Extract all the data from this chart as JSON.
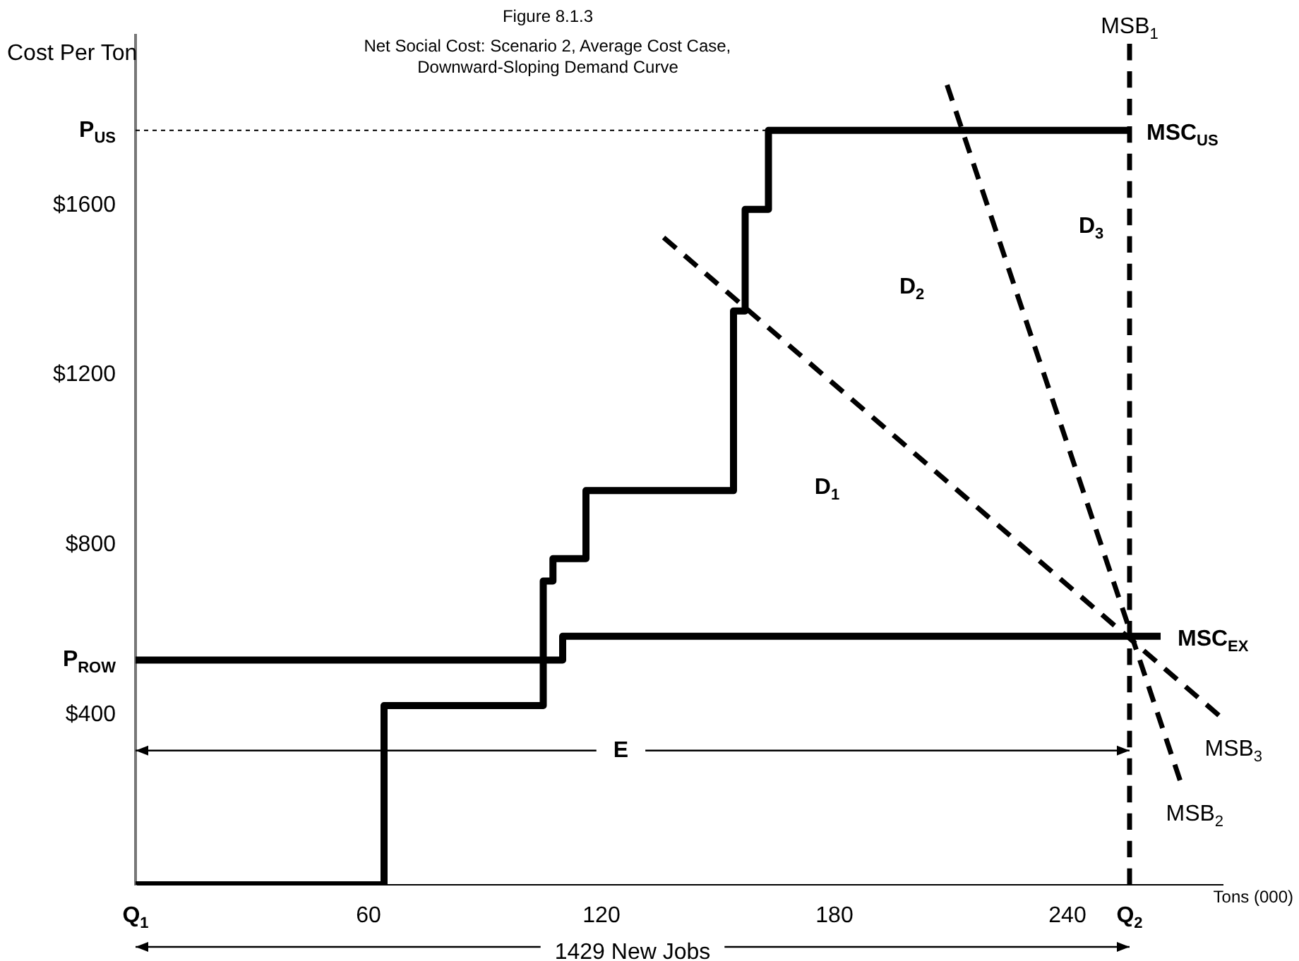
{
  "chart_data": {
    "type": "line",
    "title": "Figure 8.1.3",
    "subtitle": "Net Social Cost: Scenario 2, Average Cost Case,\nDownward-Sloping Demand Curve",
    "ylabel": "Cost Per Ton",
    "xlabel": "Tons (000)",
    "xlim": [
      0,
      280
    ],
    "ylim": [
      0,
      2000
    ],
    "xticks": [
      60,
      120,
      180,
      240
    ],
    "yticks": [
      {
        "value": 400,
        "label": "$400"
      },
      {
        "value": 529,
        "label": "P$_{ROW}$"
      },
      {
        "value": 800,
        "label": "$800"
      },
      {
        "value": 1200,
        "label": "$1200"
      },
      {
        "value": 1600,
        "label": "$1600"
      },
      {
        "value": 1776,
        "label": "P$_{US}$"
      }
    ],
    "grid": false,
    "legend": false,
    "marker": "none",
    "series": [
      {
        "type": "step",
        "name": "MSC$_{US}$",
        "color": "#000000",
        "x": [
          0,
          64,
          105,
          107.5,
          116,
          154,
          157,
          163,
          256
        ],
        "values": [
          0,
          422,
          715,
          768,
          928,
          1351,
          1590,
          1776,
          1776
        ]
      },
      {
        "type": "step",
        "name": "MSC$_{EX}$",
        "color": "#000000",
        "x": [
          0,
          110,
          264
        ],
        "values": [
          529,
          585,
          585
        ]
      },
      {
        "type": "line",
        "color": "#000000",
        "line_style": "dotted",
        "x": [
          0,
          163
        ],
        "values": [
          1776,
          1776
        ]
      },
      {
        "type": "line",
        "name": "MSB$_{1}$",
        "color": "#000000",
        "line_style": "dashed",
        "x": [
          256,
          256
        ],
        "values": [
          0,
          1980
        ]
      },
      {
        "type": "line",
        "name": "MSB$_{2}$",
        "color": "#000000",
        "line_style": "dashed",
        "x": [
          209,
          269
        ],
        "values": [
          1883,
          246
        ]
      },
      {
        "type": "line",
        "name": "MSB$_{3}$",
        "color": "#000000",
        "line_style": "dashed",
        "x": [
          136,
          279
        ],
        "values": [
          1524,
          399
        ]
      }
    ],
    "annotations": [
      "Q$_{1}$",
      "Q$_{2}$",
      "D$_{1}$",
      "D$_{2}$",
      "D$_{3}$",
      "E",
      "1429 New Jobs"
    ]
  }
}
